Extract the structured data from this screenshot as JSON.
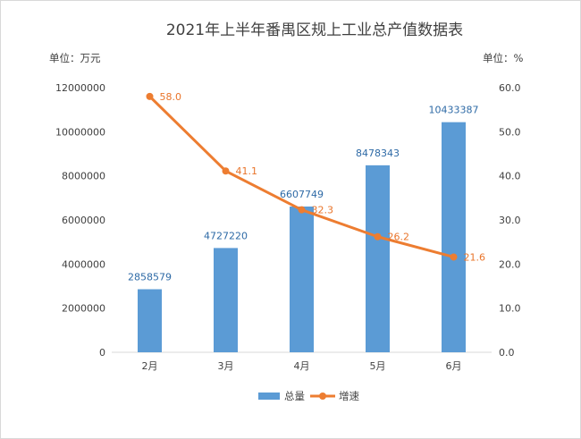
{
  "chart_data": {
    "type": "bar+line",
    "title": "2021年上半年番禺区规上工业总产值数据表",
    "left_unit": "单位：万元",
    "right_unit": "单位：%",
    "categories": [
      "2月",
      "3月",
      "4月",
      "5月",
      "6月"
    ],
    "series": [
      {
        "name": "总量",
        "type": "bar",
        "axis": "left",
        "color": "#5b9bd5",
        "values": [
          2858579,
          4727220,
          6607749,
          8478343,
          10433387
        ],
        "labels": [
          "2858579",
          "4727220",
          "6607749",
          "8478343",
          "10433387"
        ]
      },
      {
        "name": "增速",
        "type": "line",
        "axis": "right",
        "color": "#ed7d31",
        "values": [
          58.0,
          41.1,
          32.3,
          26.2,
          21.6
        ],
        "labels": [
          "58.0",
          "41.1",
          "32.3",
          "26.2",
          "21.6"
        ]
      }
    ],
    "y_left": {
      "min": 0,
      "max": 12000000,
      "step": 2000000,
      "ticks": [
        "0",
        "2000000",
        "4000000",
        "6000000",
        "8000000",
        "10000000",
        "12000000"
      ]
    },
    "y_right": {
      "min": 0,
      "max": 60,
      "step": 10,
      "ticks": [
        "0.0",
        "10.0",
        "20.0",
        "30.0",
        "40.0",
        "50.0",
        "60.0"
      ]
    },
    "grid": false,
    "legend_position": "bottom"
  }
}
